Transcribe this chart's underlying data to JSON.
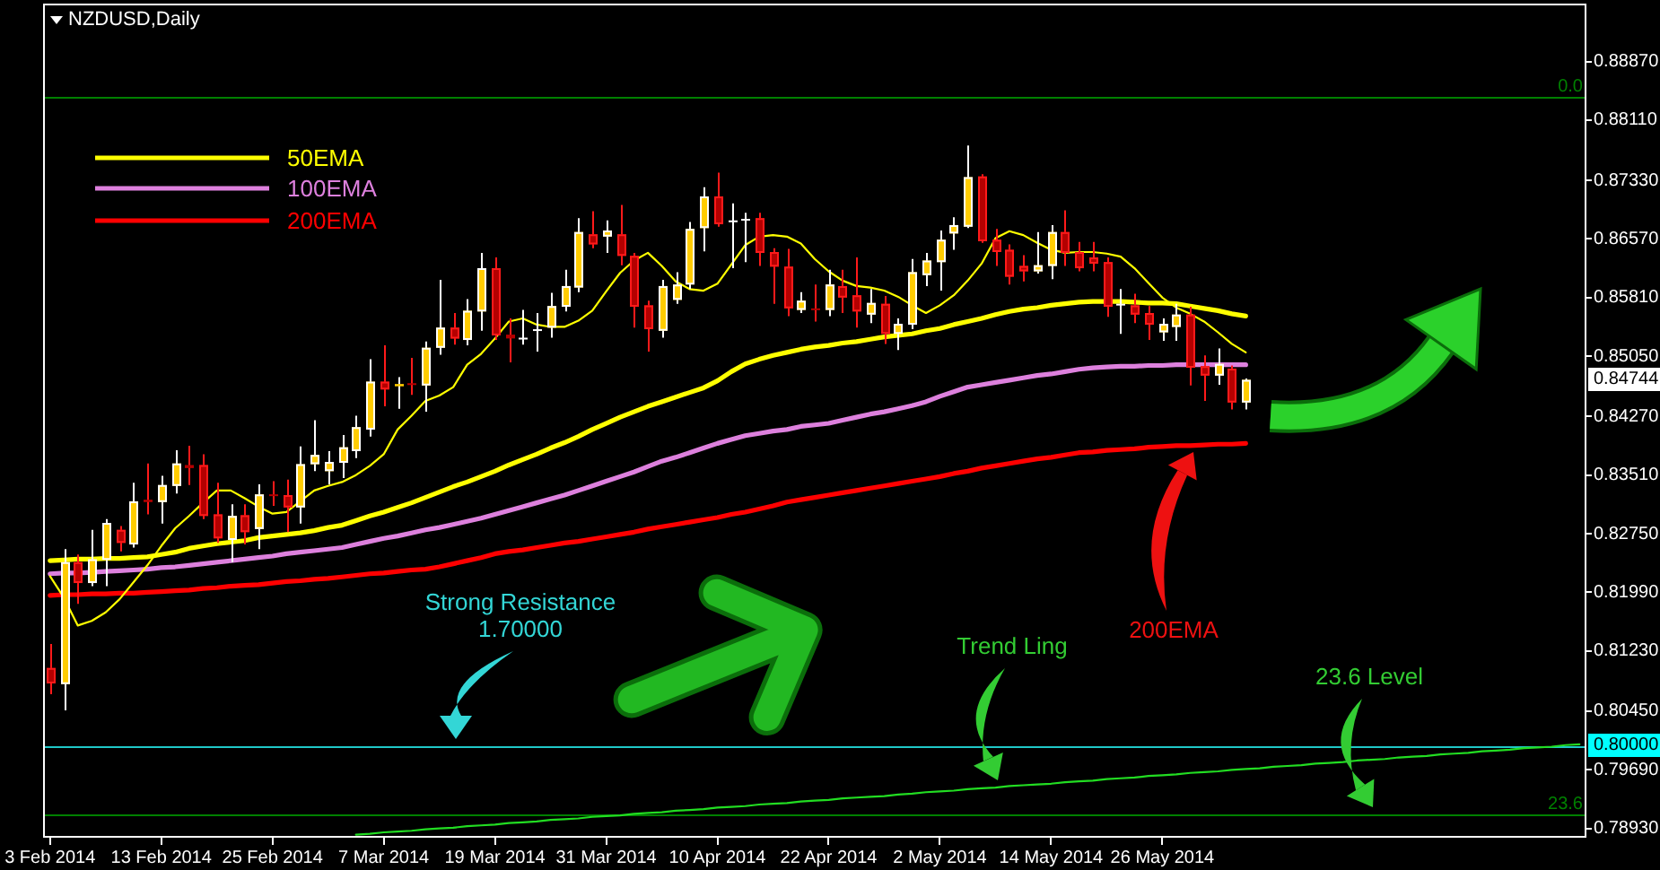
{
  "chart_data": {
    "type": "candlestick",
    "title": "NZDUSD,Daily",
    "categories": [
      "3 Feb 2014",
      null,
      null,
      null,
      null,
      null,
      null,
      null,
      "13 Feb 2014",
      null,
      null,
      null,
      null,
      null,
      null,
      null,
      "25 Feb 2014",
      null,
      null,
      null,
      null,
      null,
      null,
      null,
      "7 Mar 2014",
      null,
      null,
      null,
      null,
      null,
      null,
      null,
      "19 Mar 2014",
      null,
      null,
      null,
      null,
      null,
      null,
      null,
      "31 Mar 2014",
      null,
      null,
      null,
      null,
      null,
      null,
      null,
      "10 Apr 2014",
      null,
      null,
      null,
      null,
      null,
      null,
      null,
      "22 Apr 2014",
      null,
      null,
      null,
      null,
      null,
      null,
      null,
      "2 May 2014",
      null,
      null,
      null,
      null,
      null,
      null,
      null,
      "14 May 2014",
      null,
      null,
      null,
      null,
      null,
      null,
      null,
      "26 May 2014",
      null,
      null,
      null,
      null,
      null,
      null,
      null,
      null,
      null,
      null,
      null,
      null,
      null,
      null,
      null,
      null,
      null,
      null,
      null,
      null,
      null,
      null,
      null,
      null,
      null,
      null,
      null,
      null,
      null,
      null
    ],
    "ohlc": [
      [
        0.8101,
        0.8132,
        0.8067,
        0.8081
      ],
      [
        0.808,
        0.8255,
        0.8046,
        0.8238
      ],
      [
        0.8238,
        0.8248,
        0.8184,
        0.8211
      ],
      [
        0.8211,
        0.828,
        0.8207,
        0.8242
      ],
      [
        0.8241,
        0.8294,
        0.8207,
        0.8289
      ],
      [
        0.828,
        0.8285,
        0.8252,
        0.8263
      ],
      [
        0.8261,
        0.8341,
        0.8257,
        0.8317
      ],
      [
        0.8319,
        0.8366,
        0.83,
        0.8316
      ],
      [
        0.8316,
        0.835,
        0.8288,
        0.8338
      ],
      [
        0.8337,
        0.8383,
        0.8327,
        0.8366
      ],
      [
        0.8364,
        0.8389,
        0.8338,
        0.836
      ],
      [
        0.8364,
        0.8378,
        0.8294,
        0.8298
      ],
      [
        0.83,
        0.8341,
        0.8263,
        0.8269
      ],
      [
        0.8267,
        0.8313,
        0.8238,
        0.8298
      ],
      [
        0.8299,
        0.8313,
        0.8261,
        0.8277
      ],
      [
        0.8281,
        0.8339,
        0.8255,
        0.8326
      ],
      [
        0.8326,
        0.8343,
        0.8311,
        0.8324
      ],
      [
        0.8325,
        0.8345,
        0.8277,
        0.8309
      ],
      [
        0.8309,
        0.8388,
        0.8288,
        0.8365
      ],
      [
        0.8365,
        0.8422,
        0.8356,
        0.8377
      ],
      [
        0.8356,
        0.8382,
        0.8339,
        0.8368
      ],
      [
        0.8367,
        0.8403,
        0.8347,
        0.8387
      ],
      [
        0.8382,
        0.8428,
        0.8373,
        0.8413
      ],
      [
        0.841,
        0.8501,
        0.8401,
        0.8472
      ],
      [
        0.8472,
        0.8519,
        0.844,
        0.8462
      ],
      [
        0.8466,
        0.8478,
        0.8437,
        0.8469
      ],
      [
        0.847,
        0.8503,
        0.8455,
        0.8468
      ],
      [
        0.8467,
        0.8524,
        0.8433,
        0.8516
      ],
      [
        0.8516,
        0.8604,
        0.8507,
        0.8542
      ],
      [
        0.8542,
        0.8561,
        0.852,
        0.8528
      ],
      [
        0.8526,
        0.8579,
        0.8519,
        0.8564
      ],
      [
        0.8563,
        0.8639,
        0.8538,
        0.8619
      ],
      [
        0.8619,
        0.8633,
        0.8526,
        0.8532
      ],
      [
        0.8533,
        0.8554,
        0.8497,
        0.8528
      ],
      [
        0.8529,
        0.8565,
        0.852,
        0.8529
      ],
      [
        0.854,
        0.8561,
        0.8511,
        0.854
      ],
      [
        0.8542,
        0.8587,
        0.8529,
        0.857
      ],
      [
        0.8569,
        0.8617,
        0.8563,
        0.8596
      ],
      [
        0.8594,
        0.8684,
        0.8588,
        0.8666
      ],
      [
        0.8663,
        0.8693,
        0.8645,
        0.865
      ],
      [
        0.866,
        0.8681,
        0.8639,
        0.8668
      ],
      [
        0.8663,
        0.8701,
        0.8623,
        0.8635
      ],
      [
        0.8635,
        0.8639,
        0.8542,
        0.8569
      ],
      [
        0.8571,
        0.8577,
        0.8511,
        0.854
      ],
      [
        0.8538,
        0.8604,
        0.8529,
        0.8596
      ],
      [
        0.8578,
        0.8614,
        0.8573,
        0.8598
      ],
      [
        0.8598,
        0.8679,
        0.8592,
        0.867
      ],
      [
        0.8671,
        0.8724,
        0.8641,
        0.8712
      ],
      [
        0.8712,
        0.8743,
        0.8673,
        0.8676
      ],
      [
        0.8681,
        0.8703,
        0.8619,
        0.8681
      ],
      [
        0.8683,
        0.8691,
        0.8627,
        0.8683
      ],
      [
        0.8684,
        0.8691,
        0.8622,
        0.8639
      ],
      [
        0.864,
        0.8645,
        0.8573,
        0.8621
      ],
      [
        0.8621,
        0.8644,
        0.8557,
        0.8567
      ],
      [
        0.8565,
        0.8588,
        0.8561,
        0.8577
      ],
      [
        0.8567,
        0.8598,
        0.855,
        0.8566
      ],
      [
        0.8565,
        0.8617,
        0.8557,
        0.8598
      ],
      [
        0.8596,
        0.8617,
        0.8561,
        0.8581
      ],
      [
        0.8584,
        0.8633,
        0.8542,
        0.8563
      ],
      [
        0.8559,
        0.8592,
        0.8548,
        0.8574
      ],
      [
        0.8573,
        0.8583,
        0.8521,
        0.8534
      ],
      [
        0.8534,
        0.8554,
        0.8513,
        0.8547
      ],
      [
        0.8546,
        0.8631,
        0.854,
        0.8614
      ],
      [
        0.861,
        0.8639,
        0.8596,
        0.8629
      ],
      [
        0.8627,
        0.8668,
        0.859,
        0.8656
      ],
      [
        0.8664,
        0.8685,
        0.8643,
        0.8675
      ],
      [
        0.8673,
        0.8778,
        0.8671,
        0.8737
      ],
      [
        0.8738,
        0.8741,
        0.8652,
        0.8654
      ],
      [
        0.8656,
        0.867,
        0.8622,
        0.864
      ],
      [
        0.8643,
        0.865,
        0.8598,
        0.8608
      ],
      [
        0.8622,
        0.8636,
        0.8602,
        0.8615
      ],
      [
        0.8615,
        0.8666,
        0.8612,
        0.8623
      ],
      [
        0.8622,
        0.8675,
        0.8605,
        0.8666
      ],
      [
        0.8666,
        0.8694,
        0.8622,
        0.8639
      ],
      [
        0.864,
        0.8653,
        0.8615,
        0.8619
      ],
      [
        0.8633,
        0.8653,
        0.8615,
        0.8625
      ],
      [
        0.8627,
        0.8633,
        0.8556,
        0.8569
      ],
      [
        0.8573,
        0.8592,
        0.8534,
        0.8573
      ],
      [
        0.8571,
        0.8586,
        0.8548,
        0.8559
      ],
      [
        0.8561,
        0.857,
        0.8526,
        0.8546
      ],
      [
        0.8536,
        0.8554,
        0.8525,
        0.8547
      ],
      [
        0.8543,
        0.8573,
        0.8525,
        0.8559
      ],
      [
        0.8559,
        0.8569,
        0.8467,
        0.849
      ],
      [
        0.8492,
        0.8506,
        0.8447,
        0.848
      ],
      [
        0.848,
        0.8515,
        0.8468,
        0.8495
      ],
      [
        0.8489,
        0.8493,
        0.8436,
        0.8445
      ],
      [
        0.8445,
        0.8476,
        0.8436,
        0.84744
      ],
      null,
      null,
      null,
      null,
      null,
      null,
      null,
      null,
      null,
      null,
      null,
      null,
      null,
      null,
      null,
      null,
      null,
      null,
      null,
      null,
      null,
      null,
      null,
      null
    ],
    "colors": [
      "#b40000",
      "#ffcc00",
      "#b40000",
      "#ffcc00",
      "#ffcc00",
      "#b40000",
      "#ffcc00",
      "#b40000",
      "#ffcc00",
      "#ffcc00",
      "#b40000",
      "#b40000",
      "#b40000",
      "#ffcc00",
      "#b40000",
      "#ffcc00",
      "#b40000",
      "#b40000",
      "#ffcc00",
      "#ffcc00",
      "#ffcc00",
      "#ffcc00",
      "#ffcc00",
      "#ffcc00",
      "#b40000",
      "#ffcc00",
      "#b40000",
      "#ffcc00",
      "#ffcc00",
      "#b40000",
      "#ffcc00",
      "#ffcc00",
      "#b40000",
      "#b40000",
      "#ffffff",
      "#ffffff",
      "#ffcc00",
      "#ffcc00",
      "#ffcc00",
      "#b40000",
      "#ffcc00",
      "#b40000",
      "#b40000",
      "#b40000",
      "#ffcc00",
      "#ffcc00",
      "#ffcc00",
      "#ffcc00",
      "#b40000",
      "#ffffff",
      "#ffffff",
      "#b40000",
      "#b40000",
      "#b40000",
      "#ffcc00",
      "#b40000",
      "#ffcc00",
      "#b40000",
      "#b40000",
      "#ffcc00",
      "#b40000",
      "#ffcc00",
      "#ffcc00",
      "#ffcc00",
      "#ffcc00",
      "#ffcc00",
      "#ffcc00",
      "#b40000",
      "#b40000",
      "#b40000",
      "#b40000",
      "#ffcc00",
      "#ffcc00",
      "#b40000",
      "#b40000",
      "#b40000",
      "#b40000",
      "#ffffff",
      "#b40000",
      "#b40000",
      "#ffcc00",
      "#ffcc00",
      "#b40000",
      "#b40000",
      "#ffcc00",
      "#b40000",
      "#ffcc00",
      null,
      null,
      null,
      null,
      null,
      null,
      null,
      null,
      null,
      null,
      null,
      null,
      null,
      null,
      null,
      null,
      null,
      null,
      null,
      null,
      null,
      null,
      null,
      null
    ],
    "series": [
      {
        "name": "50EMA",
        "type": "line",
        "color": "#ffff00",
        "values": [
          0.824,
          0.8241,
          0.8242,
          0.8242,
          0.8243,
          0.8243,
          0.8244,
          0.8245,
          0.8248,
          0.8251,
          0.8256,
          0.8259,
          0.8262,
          0.8264,
          0.8266,
          0.827,
          0.8272,
          0.8274,
          0.8276,
          0.8279,
          0.8283,
          0.8286,
          0.8292,
          0.8298,
          0.8303,
          0.8309,
          0.8315,
          0.8322,
          0.8329,
          0.8336,
          0.8342,
          0.8349,
          0.8356,
          0.8364,
          0.8371,
          0.8378,
          0.8386,
          0.8393,
          0.8401,
          0.841,
          0.8418,
          0.8426,
          0.8433,
          0.844,
          0.8446,
          0.8452,
          0.8458,
          0.8464,
          0.8473,
          0.8485,
          0.8495,
          0.8501,
          0.8506,
          0.851,
          0.8514,
          0.8517,
          0.8519,
          0.8522,
          0.8524,
          0.8527,
          0.853,
          0.8532,
          0.8534,
          0.8538,
          0.8541,
          0.8546,
          0.855,
          0.8554,
          0.8559,
          0.8563,
          0.8566,
          0.8568,
          0.8571,
          0.8573,
          0.8575,
          0.8576,
          0.8576,
          0.8576,
          0.8575,
          0.8574,
          0.8574,
          0.8573,
          0.857,
          0.8567,
          0.8564,
          0.856,
          0.8557,
          null,
          null,
          null,
          null,
          null,
          null,
          null,
          null,
          null,
          null,
          null,
          null,
          null,
          null,
          null,
          null,
          null,
          null,
          null,
          null,
          null,
          null,
          null,
          null
        ]
      },
      {
        "name": "100EMA",
        "type": "line",
        "color": "#dd80dd",
        "values": [
          0.8223,
          0.8224,
          0.8224,
          0.8225,
          0.8226,
          0.8227,
          0.8228,
          0.8229,
          0.8231,
          0.8232,
          0.8234,
          0.8236,
          0.8238,
          0.824,
          0.8242,
          0.8244,
          0.8246,
          0.8249,
          0.8251,
          0.8253,
          0.8255,
          0.8257,
          0.8261,
          0.8265,
          0.8269,
          0.8272,
          0.8276,
          0.828,
          0.8283,
          0.8287,
          0.8291,
          0.8295,
          0.83,
          0.8305,
          0.831,
          0.8315,
          0.832,
          0.8325,
          0.8331,
          0.8337,
          0.8343,
          0.8349,
          0.8355,
          0.8362,
          0.8369,
          0.8374,
          0.838,
          0.8386,
          0.8392,
          0.8397,
          0.8402,
          0.8405,
          0.8408,
          0.841,
          0.8414,
          0.8416,
          0.8418,
          0.8422,
          0.8426,
          0.843,
          0.8433,
          0.8437,
          0.8441,
          0.8446,
          0.8453,
          0.8459,
          0.8465,
          0.8468,
          0.8471,
          0.8474,
          0.8477,
          0.848,
          0.8482,
          0.8485,
          0.8488,
          0.849,
          0.8491,
          0.8492,
          0.8492,
          0.8493,
          0.8493,
          0.8494,
          0.8494,
          0.8494,
          0.8494,
          0.8494,
          0.8494,
          null,
          null,
          null,
          null,
          null,
          null,
          null,
          null,
          null,
          null,
          null,
          null,
          null,
          null,
          null,
          null,
          null,
          null,
          null,
          null,
          null,
          null,
          null,
          null
        ]
      },
      {
        "name": "200EMA",
        "type": "line",
        "color": "#ff0000",
        "values": [
          0.8195,
          0.8196,
          0.8196,
          0.8197,
          0.8197,
          0.8198,
          0.8198,
          0.8199,
          0.82,
          0.8201,
          0.8202,
          0.8204,
          0.8205,
          0.8207,
          0.8208,
          0.8209,
          0.8211,
          0.8213,
          0.8214,
          0.8216,
          0.8217,
          0.8219,
          0.8221,
          0.8223,
          0.8224,
          0.8226,
          0.8228,
          0.8229,
          0.8232,
          0.8236,
          0.824,
          0.8244,
          0.8249,
          0.8252,
          0.8254,
          0.8257,
          0.826,
          0.8263,
          0.8265,
          0.8268,
          0.8271,
          0.8274,
          0.8277,
          0.8281,
          0.8284,
          0.8287,
          0.829,
          0.8293,
          0.8296,
          0.83,
          0.8303,
          0.8307,
          0.8311,
          0.8316,
          0.8319,
          0.8322,
          0.8325,
          0.8328,
          0.8331,
          0.8334,
          0.8337,
          0.834,
          0.8343,
          0.8346,
          0.8349,
          0.8353,
          0.8356,
          0.836,
          0.8363,
          0.8366,
          0.8369,
          0.8372,
          0.8374,
          0.8377,
          0.838,
          0.8381,
          0.8383,
          0.8384,
          0.8385,
          0.8387,
          0.8388,
          0.8389,
          0.8389,
          0.839,
          0.8391,
          0.8391,
          0.8392,
          null,
          null,
          null,
          null,
          null,
          null,
          null,
          null,
          null,
          null,
          null,
          null,
          null,
          null,
          null,
          null,
          null,
          null,
          null,
          null,
          null,
          null,
          null,
          null
        ]
      },
      {
        "type": "line",
        "color": "#ffff00",
        "values": [
          0.822,
          0.8192,
          0.8156,
          0.8162,
          0.8173,
          0.819,
          0.8212,
          0.8234,
          0.8259,
          0.8282,
          0.8298,
          0.8315,
          0.8331,
          0.8331,
          0.8321,
          0.831,
          0.8301,
          0.8303,
          0.8317,
          0.8331,
          0.8337,
          0.8342,
          0.8351,
          0.8363,
          0.8378,
          0.841,
          0.8428,
          0.8447,
          0.8454,
          0.8465,
          0.8494,
          0.8508,
          0.8528,
          0.855,
          0.8554,
          0.8546,
          0.8543,
          0.8543,
          0.8551,
          0.8564,
          0.8589,
          0.8613,
          0.8629,
          0.8639,
          0.8622,
          0.8602,
          0.8592,
          0.859,
          0.8599,
          0.8624,
          0.8649,
          0.866,
          0.8662,
          0.866,
          0.8651,
          0.8631,
          0.8615,
          0.8603,
          0.8596,
          0.8594,
          0.859,
          0.8582,
          0.8571,
          0.8561,
          0.8571,
          0.8584,
          0.8603,
          0.8625,
          0.8658,
          0.8667,
          0.8662,
          0.8652,
          0.8643,
          0.8639,
          0.864,
          0.864,
          0.8638,
          0.8634,
          0.8619,
          0.86,
          0.8581,
          0.8568,
          0.856,
          0.855,
          0.8536,
          0.8521,
          0.851,
          null,
          null,
          null,
          null,
          null,
          null,
          null,
          null,
          null,
          null,
          null,
          null,
          null,
          null,
          null,
          null,
          null,
          null,
          null,
          null,
          null,
          null,
          null,
          null
        ]
      },
      {
        "type": "line",
        "color": "#22dd22",
        "values": [
          null,
          null,
          null,
          null,
          null,
          null,
          null,
          null,
          null,
          null,
          null,
          null,
          null,
          null,
          null,
          null,
          null,
          null,
          null,
          null,
          null,
          null,
          0.7885,
          0.7886,
          0.7888,
          0.7889,
          0.789,
          0.7892,
          0.7893,
          0.7894,
          0.7896,
          0.7897,
          0.7898,
          0.79,
          0.7901,
          0.7902,
          0.7904,
          0.7905,
          0.7906,
          0.7908,
          0.7909,
          0.791,
          0.7912,
          0.7913,
          0.7914,
          0.7916,
          0.7917,
          0.7918,
          0.792,
          0.7921,
          0.7922,
          0.7924,
          0.7925,
          0.7926,
          0.7928,
          0.7929,
          0.793,
          0.7932,
          0.7933,
          0.7934,
          0.7935,
          0.7937,
          0.7938,
          0.794,
          0.7941,
          0.7942,
          0.7944,
          0.7945,
          0.7946,
          0.7948,
          0.7949,
          0.795,
          0.7951,
          0.7953,
          0.7954,
          0.7955,
          0.7957,
          0.7958,
          0.7959,
          0.7961,
          0.7962,
          0.7963,
          0.7965,
          0.7966,
          0.7967,
          0.7969,
          0.797,
          0.7971,
          0.7973,
          0.7974,
          0.7975,
          0.7977,
          0.7978,
          0.7979,
          0.7981,
          0.7982,
          0.7983,
          0.7985,
          0.7986,
          0.7987,
          0.7989,
          0.799,
          0.7991,
          0.7993,
          0.7994,
          0.7995,
          0.7997,
          0.7998,
          0.7999,
          0.8001,
          0.8002
        ]
      }
    ],
    "ylim": [
      0.7881,
      0.8962
    ],
    "yticks": [
      {
        "value": 0.7893,
        "label": "0.78930"
      },
      {
        "value": 0.7969,
        "label": "0.79690"
      },
      {
        "value": 0.8045,
        "label": "0.80450"
      },
      {
        "value": 0.8123,
        "label": "0.81230"
      },
      {
        "value": 0.8199,
        "label": "0.81990"
      },
      {
        "value": 0.8275,
        "label": "0.82750"
      },
      {
        "value": 0.8351,
        "label": "0.83510"
      },
      {
        "value": 0.8427,
        "label": "0.84270"
      },
      {
        "value": 0.8505,
        "label": "0.85050"
      },
      {
        "value": 0.8581,
        "label": "0.85810"
      },
      {
        "value": 0.8657,
        "label": "0.86570"
      },
      {
        "value": 0.8733,
        "label": "0.87330"
      },
      {
        "value": 0.8811,
        "label": "0.88110"
      },
      {
        "value": 0.8887,
        "label": "0.88870"
      }
    ],
    "ref_lines": [
      {
        "axis": "y",
        "value": 0.8,
        "color": "#1fc8c8"
      },
      {
        "axis": "y",
        "value": 0.884,
        "color": "#008000"
      },
      {
        "axis": "y",
        "value": 0.7911,
        "color": "#008000"
      }
    ],
    "annotations": [
      "Strong Resistance\n1.70000",
      "Trend Ling",
      "23.6 Level",
      "200EMA",
      {
        "text": "0.0",
        "y": 0.884
      },
      {
        "text": "23.6",
        "y": 0.7911
      },
      {
        "text": "0.80000",
        "y": 0.8
      },
      {
        "text": "0.84744",
        "y": 0.84744
      }
    ],
    "legend": "top left"
  }
}
